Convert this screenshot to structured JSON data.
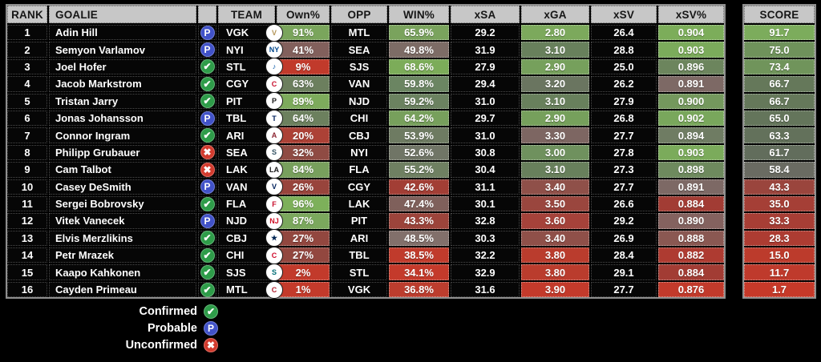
{
  "table": {
    "headers": {
      "rank": "RANK",
      "goalie": "GOALIE",
      "status": "",
      "team": "TEAM",
      "own": "Own%",
      "opp": "OPP",
      "win": "WIN%",
      "xsa": "xSA",
      "xga": "xGA",
      "xsv": "xSV",
      "xsvp": "xSV%",
      "score": "SCORE"
    },
    "rows": [
      {
        "rank": "1",
        "goalie": "Adin Hill",
        "status": "probable",
        "team": "VGK",
        "logo": {
          "t": "V",
          "c": "#B4975A"
        },
        "own": {
          "v": "91%",
          "bg": "#7AA55C"
        },
        "opp": "MTL",
        "win": {
          "v": "65.9%",
          "bg": "#7AA35D"
        },
        "xsa": "29.2",
        "xga": {
          "v": "2.80",
          "bg": "#7CA95C"
        },
        "xsv": "26.4",
        "xsvp": {
          "v": "0.904",
          "bg": "#7CAD5A"
        },
        "score": {
          "v": "91.7",
          "bg": "#7CAC5C"
        }
      },
      {
        "rank": "2",
        "goalie": "Semyon Varlamov",
        "status": "probable",
        "team": "NYI",
        "logo": {
          "t": "NY",
          "c": "#00468B"
        },
        "own": {
          "v": "41%",
          "bg": "#82605C"
        },
        "opp": "SEA",
        "win": {
          "v": "49.8%",
          "bg": "#7D6C66"
        },
        "xsa": "31.9",
        "xga": {
          "v": "3.10",
          "bg": "#68805C"
        },
        "xsv": "28.8",
        "xsvp": {
          "v": "0.903",
          "bg": "#7BAB5B"
        },
        "score": {
          "v": "75.0",
          "bg": "#6F925B"
        }
      },
      {
        "rank": "3",
        "goalie": "Joel Hofer",
        "status": "confirmed",
        "team": "STL",
        "logo": {
          "t": "♪",
          "c": "#0054A6"
        },
        "own": {
          "v": "9%",
          "bg": "#C13A2B"
        },
        "opp": "SJS",
        "win": {
          "v": "68.6%",
          "bg": "#7CAC59"
        },
        "xsa": "27.9",
        "xga": {
          "v": "2.90",
          "bg": "#76A05C"
        },
        "xsv": "25.0",
        "xsvp": {
          "v": "0.896",
          "bg": "#6C855D"
        },
        "score": {
          "v": "73.4",
          "bg": "#70945B"
        }
      },
      {
        "rank": "4",
        "goalie": "Jacob Markstrom",
        "status": "confirmed",
        "team": "CGY",
        "logo": {
          "t": "C",
          "c": "#C8102E"
        },
        "own": {
          "v": "63%",
          "bg": "#6C7F5E"
        },
        "opp": "VAN",
        "win": {
          "v": "59.8%",
          "bg": "#6B8562"
        },
        "xsa": "29.4",
        "xga": {
          "v": "3.20",
          "bg": "#6A7560"
        },
        "xsv": "26.2",
        "xsvp": {
          "v": "0.891",
          "bg": "#7D6965"
        },
        "score": {
          "v": "66.7",
          "bg": "#65785A"
        }
      },
      {
        "rank": "5",
        "goalie": "Tristan Jarry",
        "status": "confirmed",
        "team": "PIT",
        "logo": {
          "t": "P",
          "c": "#1A1A1A"
        },
        "own": {
          "v": "89%",
          "bg": "#7DAB5C"
        },
        "opp": "NJD",
        "win": {
          "v": "59.2%",
          "bg": "#6B8260"
        },
        "xsa": "31.0",
        "xga": {
          "v": "3.10",
          "bg": "#68805C"
        },
        "xsv": "27.9",
        "xsvp": {
          "v": "0.900",
          "bg": "#74985D"
        },
        "score": {
          "v": "66.7",
          "bg": "#65785A"
        }
      },
      {
        "rank": "6",
        "goalie": "Jonas Johansson",
        "status": "probable",
        "team": "TBL",
        "logo": {
          "t": "T",
          "c": "#00205B"
        },
        "own": {
          "v": "64%",
          "bg": "#6C805E"
        },
        "opp": "CHI",
        "win": {
          "v": "64.2%",
          "bg": "#77A05C"
        },
        "xsa": "29.7",
        "xga": {
          "v": "2.90",
          "bg": "#76A05C"
        },
        "xsv": "26.8",
        "xsvp": {
          "v": "0.902",
          "bg": "#79A75C"
        },
        "score": {
          "v": "65.0",
          "bg": "#64755B"
        }
      },
      {
        "rank": "7",
        "goalie": "Connor Ingram",
        "status": "confirmed",
        "team": "ARI",
        "logo": {
          "t": "A",
          "c": "#8C2633"
        },
        "own": {
          "v": "20%",
          "bg": "#AC4136"
        },
        "opp": "CBJ",
        "win": {
          "v": "53.9%",
          "bg": "#6E7B62"
        },
        "xsa": "31.0",
        "xga": {
          "v": "3.30",
          "bg": "#7D6662"
        },
        "xsv": "27.7",
        "xsvp": {
          "v": "0.894",
          "bg": "#6F7C63"
        },
        "score": {
          "v": "63.3",
          "bg": "#63715B"
        }
      },
      {
        "rank": "8",
        "goalie": "Philipp Grubauer",
        "status": "unconfirmed",
        "team": "SEA",
        "logo": {
          "t": "S",
          "c": "#355464"
        },
        "own": {
          "v": "32%",
          "bg": "#8F4B43"
        },
        "opp": "NYI",
        "win": {
          "v": "52.6%",
          "bg": "#707566"
        },
        "xsa": "30.8",
        "xga": {
          "v": "3.00",
          "bg": "#6F915E"
        },
        "xsv": "27.8",
        "xsvp": {
          "v": "0.903",
          "bg": "#7BAB5B"
        },
        "score": {
          "v": "61.7",
          "bg": "#626D5C"
        }
      },
      {
        "rank": "9",
        "goalie": "Cam Talbot",
        "status": "unconfirmed",
        "team": "LAK",
        "logo": {
          "t": "LA",
          "c": "#1A1A1A"
        },
        "own": {
          "v": "84%",
          "bg": "#78A05D"
        },
        "opp": "FLA",
        "win": {
          "v": "55.2%",
          "bg": "#6F8062"
        },
        "xsa": "30.4",
        "xga": {
          "v": "3.10",
          "bg": "#68805C"
        },
        "xsv": "27.3",
        "xsvp": {
          "v": "0.898",
          "bg": "#6E8A5E"
        },
        "score": {
          "v": "58.4",
          "bg": "#6A6B62"
        }
      },
      {
        "rank": "10",
        "goalie": "Casey DeSmith",
        "status": "probable",
        "team": "VAN",
        "logo": {
          "t": "V",
          "c": "#00205B"
        },
        "own": {
          "v": "26%",
          "bg": "#98443C"
        },
        "opp": "CGY",
        "win": {
          "v": "42.6%",
          "bg": "#A23E35"
        },
        "xsa": "31.1",
        "xga": {
          "v": "3.40",
          "bg": "#8F5049"
        },
        "xsv": "27.7",
        "xsvp": {
          "v": "0.891",
          "bg": "#7D6965"
        },
        "score": {
          "v": "43.3",
          "bg": "#9A453D"
        }
      },
      {
        "rank": "11",
        "goalie": "Sergei Bobrovsky",
        "status": "confirmed",
        "team": "FLA",
        "logo": {
          "t": "F",
          "c": "#C8102E"
        },
        "own": {
          "v": "96%",
          "bg": "#7DB05A"
        },
        "opp": "LAK",
        "win": {
          "v": "47.4%",
          "bg": "#7F605B"
        },
        "xsa": "30.1",
        "xga": {
          "v": "3.50",
          "bg": "#9A463E"
        },
        "xsv": "26.6",
        "xsvp": {
          "v": "0.884",
          "bg": "#A23C34"
        },
        "score": {
          "v": "35.0",
          "bg": "#A53F36"
        }
      },
      {
        "rank": "12",
        "goalie": "Vitek Vanecek",
        "status": "probable",
        "team": "NJD",
        "logo": {
          "t": "NJ",
          "c": "#CE1126"
        },
        "own": {
          "v": "87%",
          "bg": "#7BA85D"
        },
        "opp": "PIT",
        "win": {
          "v": "43.3%",
          "bg": "#9C443B"
        },
        "xsa": "32.8",
        "xga": {
          "v": "3.60",
          "bg": "#A5423A"
        },
        "xsv": "29.2",
        "xsvp": {
          "v": "0.890",
          "bg": "#84625F"
        },
        "score": {
          "v": "33.3",
          "bg": "#A73E35"
        }
      },
      {
        "rank": "13",
        "goalie": "Elvis Merzlikins",
        "status": "confirmed",
        "team": "CBJ",
        "logo": {
          "t": "★",
          "c": "#002654"
        },
        "own": {
          "v": "27%",
          "bg": "#92473F"
        },
        "opp": "ARI",
        "win": {
          "v": "48.5%",
          "bg": "#82706B"
        },
        "xsa": "30.3",
        "xga": {
          "v": "3.40",
          "bg": "#8F5049"
        },
        "xsv": "26.9",
        "xsvp": {
          "v": "0.888",
          "bg": "#8A5852"
        },
        "score": {
          "v": "28.3",
          "bg": "#AD3C32"
        }
      },
      {
        "rank": "14",
        "goalie": "Petr Mrazek",
        "status": "confirmed",
        "team": "CHI",
        "logo": {
          "t": "C",
          "c": "#CF0A2C"
        },
        "own": {
          "v": "27%",
          "bg": "#92473F"
        },
        "opp": "TBL",
        "win": {
          "v": "38.5%",
          "bg": "#C03B2C"
        },
        "xsa": "32.2",
        "xga": {
          "v": "3.80",
          "bg": "#BA3C2D"
        },
        "xsv": "28.4",
        "xsvp": {
          "v": "0.882",
          "bg": "#AE3B31"
        },
        "score": {
          "v": "15.0",
          "bg": "#BC3B2C"
        }
      },
      {
        "rank": "15",
        "goalie": "Kaapo Kahkonen",
        "status": "confirmed",
        "team": "SJS",
        "logo": {
          "t": "S",
          "c": "#006D75"
        },
        "own": {
          "v": "2%",
          "bg": "#C23A2B"
        },
        "opp": "STL",
        "win": {
          "v": "34.1%",
          "bg": "#C43A2B"
        },
        "xsa": "32.9",
        "xga": {
          "v": "3.80",
          "bg": "#BA3C2D"
        },
        "xsv": "29.1",
        "xsvp": {
          "v": "0.884",
          "bg": "#A23C34"
        },
        "score": {
          "v": "11.7",
          "bg": "#BF3A2C"
        }
      },
      {
        "rank": "16",
        "goalie": "Cayden Primeau",
        "status": "confirmed",
        "team": "MTL",
        "logo": {
          "t": "C",
          "c": "#AF1E2D"
        },
        "own": {
          "v": "1%",
          "bg": "#C33A2B"
        },
        "opp": "VGK",
        "win": {
          "v": "36.8%",
          "bg": "#BC3D2E"
        },
        "xsa": "31.6",
        "xga": {
          "v": "3.90",
          "bg": "#C33A2B"
        },
        "xsv": "27.7",
        "xsvp": {
          "v": "0.876",
          "bg": "#C23A2B"
        },
        "score": {
          "v": "1.7",
          "bg": "#C63929"
        }
      }
    ]
  },
  "statuses": {
    "confirmed": {
      "label": "Confirmed",
      "glyph": "✔",
      "color": "#2E9C49"
    },
    "probable": {
      "label": "Probable",
      "glyph": "P",
      "color": "#4152C8"
    },
    "unconfirmed": {
      "label": "Unconfirmed",
      "glyph": "✖",
      "color": "#D23B2E"
    }
  },
  "colors": {
    "background": "#000000",
    "header_bg": "#C7C7C7",
    "row_bg": "#060606",
    "scale_green": "#7CAC5C",
    "scale_red": "#C13A2B"
  }
}
